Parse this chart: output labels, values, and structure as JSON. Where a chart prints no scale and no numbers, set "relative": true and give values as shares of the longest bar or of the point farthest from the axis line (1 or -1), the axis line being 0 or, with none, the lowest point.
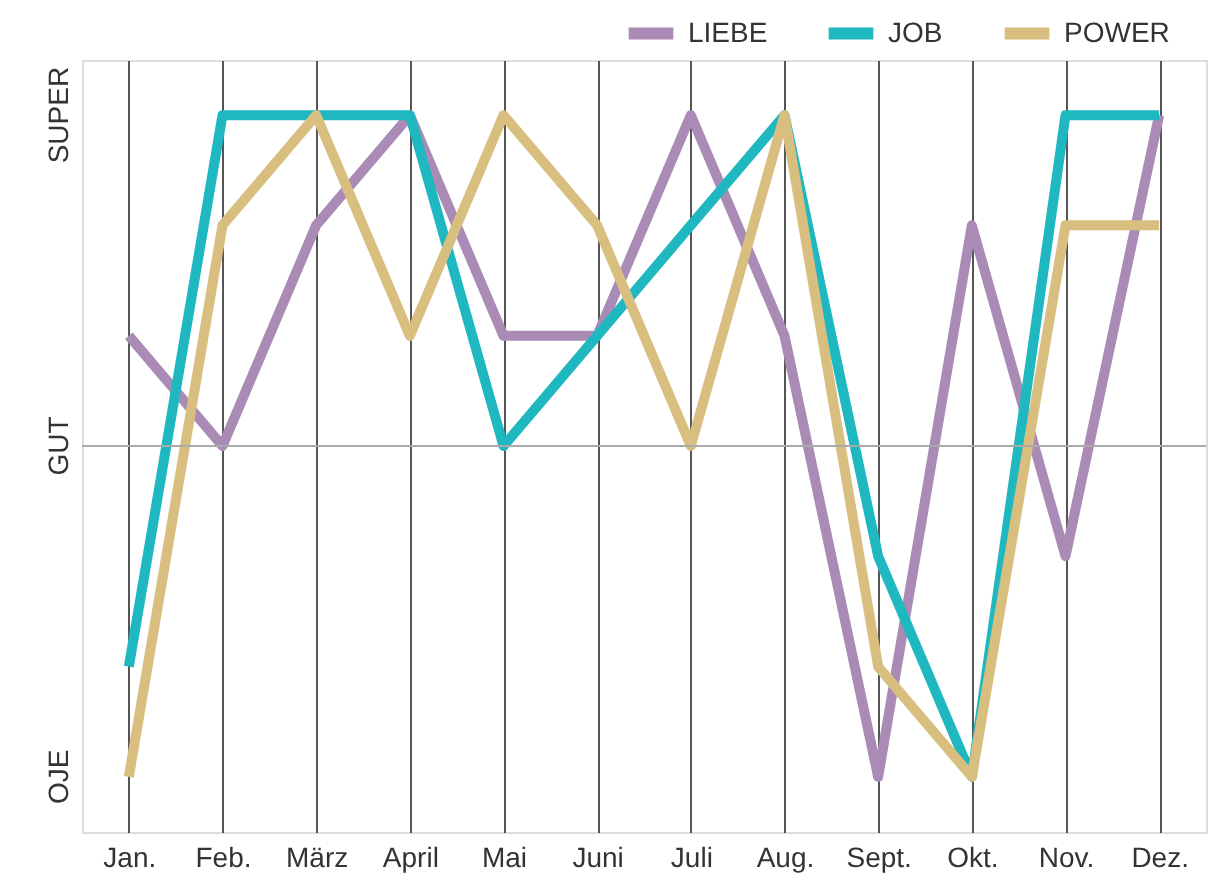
{
  "chart_data": {
    "type": "line",
    "categories": [
      "Jan.",
      "Feb.",
      "März",
      "April",
      "Mai",
      "Juni",
      "Juli",
      "Aug.",
      "Sept.",
      "Okt.",
      "Nov.",
      "Dez."
    ],
    "series": [
      {
        "name": "LIEBE",
        "color": "#a98bb5",
        "values": [
          0.333,
          0,
          0.667,
          1,
          0.333,
          0.333,
          1,
          0.333,
          -1,
          0.667,
          -0.333,
          1
        ]
      },
      {
        "name": "JOB",
        "color": "#1fb8c0",
        "values": [
          -0.667,
          1,
          1,
          1,
          0,
          0.333,
          0.667,
          1,
          -0.333,
          -1,
          1,
          1
        ]
      },
      {
        "name": "POWER",
        "color": "#d8bf7f",
        "values": [
          -1,
          0.667,
          1,
          0.333,
          1,
          0.667,
          0,
          1,
          -0.667,
          -1,
          0.667,
          0.667
        ]
      }
    ],
    "relative": true,
    "annotations": [
      "OJE",
      "GUT",
      "SUPER"
    ],
    "grid": "x",
    "ref_lines": [
      {
        "axis": "y",
        "value": 0,
        "color": "#aaaaaa"
      }
    ],
    "legend": "top right",
    "line_style": "solid",
    "marker": "none"
  }
}
